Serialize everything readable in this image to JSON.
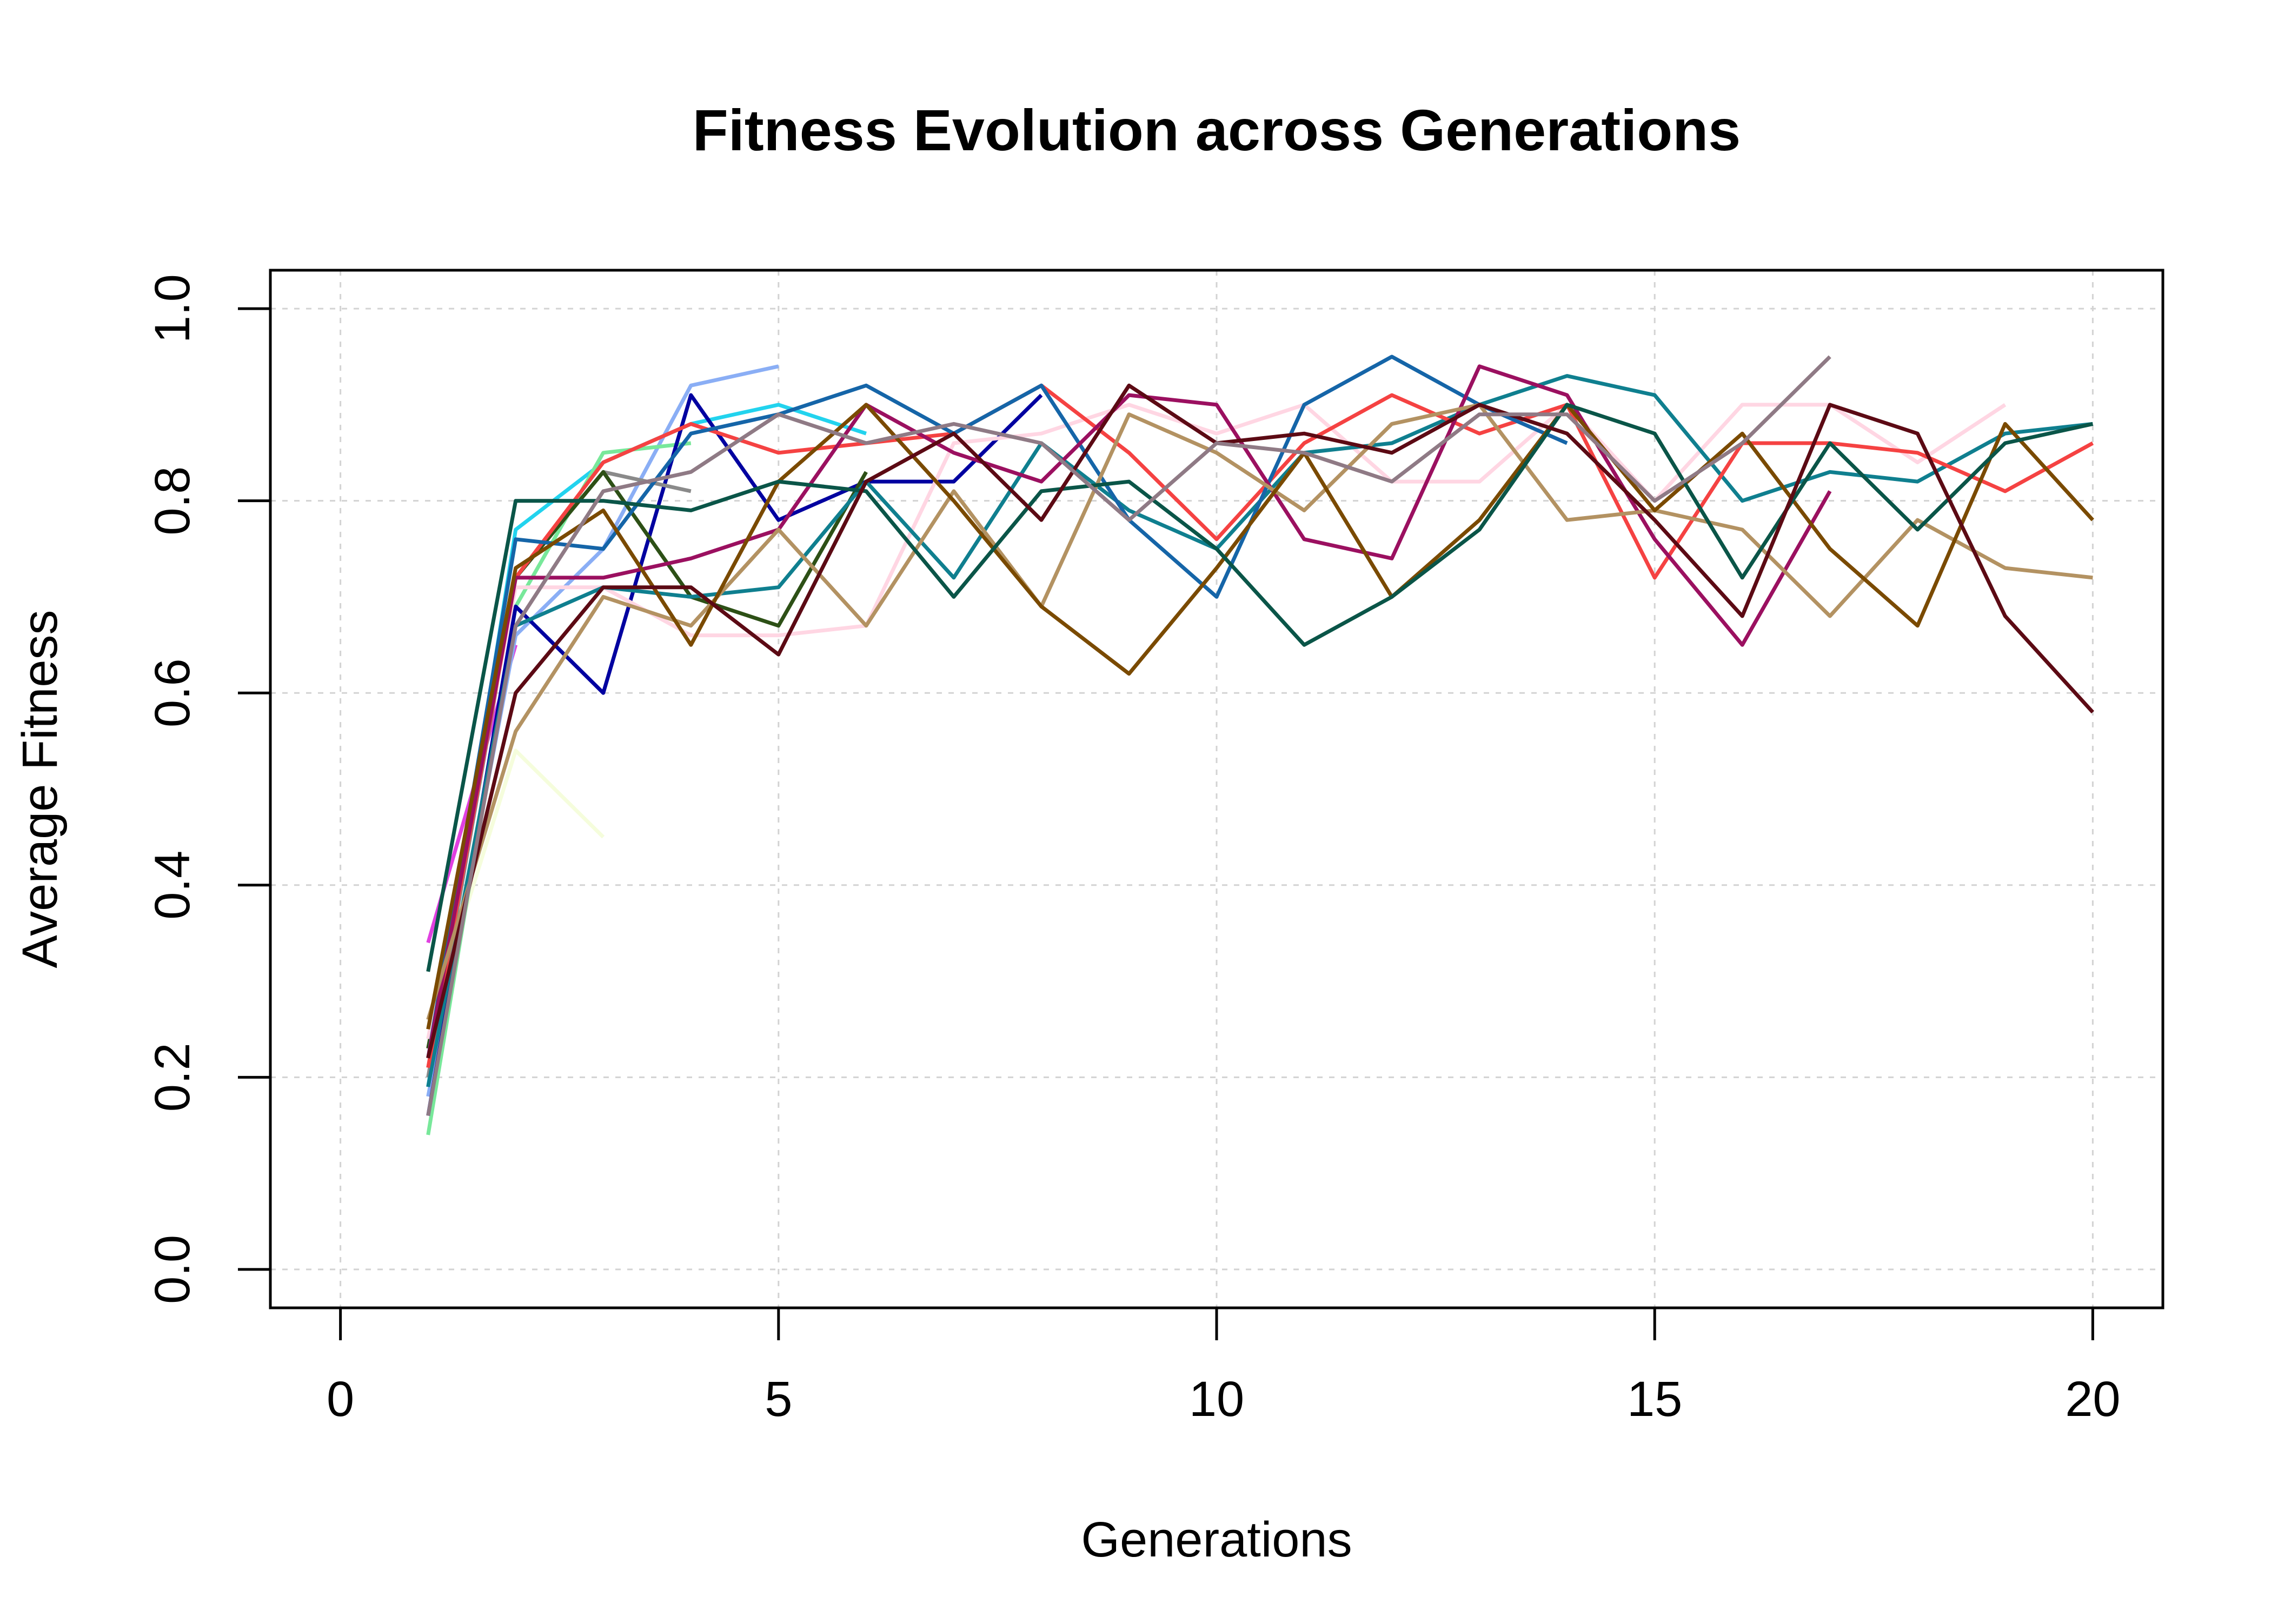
{
  "chart_data": {
    "type": "line",
    "title": "Fitness Evolution across Generations",
    "xlabel": "Generations",
    "ylabel": "Average Fitness",
    "xlim": [
      -0.8,
      20.8
    ],
    "ylim": [
      -0.04,
      1.04
    ],
    "x_ticks": [
      0,
      5,
      10,
      15,
      20
    ],
    "y_ticks": [
      0.0,
      0.2,
      0.4,
      0.6,
      0.8,
      1.0
    ],
    "x_tick_labels": [
      "0",
      "5",
      "10",
      "15",
      "20"
    ],
    "y_tick_labels": [
      "0.0",
      "0.2",
      "0.4",
      "0.6",
      "0.8",
      "1.0"
    ],
    "grid": true,
    "legend": "none",
    "series": [
      {
        "color": "#f5fddc",
        "x": [
          1,
          2,
          3
        ],
        "y": [
          0.25,
          0.54,
          0.45
        ]
      },
      {
        "color": "#e040e0",
        "x": [
          1,
          2
        ],
        "y": [
          0.34,
          0.65
        ]
      },
      {
        "color": "#22d3ee",
        "x": [
          1,
          2,
          3,
          4,
          5,
          6
        ],
        "y": [
          0.19,
          0.77,
          0.84,
          0.88,
          0.9,
          0.87
        ]
      },
      {
        "color": "#8aaef5",
        "x": [
          1,
          2,
          3,
          4,
          5
        ],
        "y": [
          0.18,
          0.66,
          0.75,
          0.92,
          0.94
        ]
      },
      {
        "color": "#78e89a",
        "x": [
          1,
          2,
          3,
          4
        ],
        "y": [
          0.14,
          0.69,
          0.85,
          0.86
        ]
      },
      {
        "color": "#0000a0",
        "x": [
          1,
          2,
          3,
          4,
          5,
          6,
          7,
          8
        ],
        "y": [
          0.16,
          0.69,
          0.6,
          0.91,
          0.78,
          0.82,
          0.82,
          0.91
        ]
      },
      {
        "color": "#8a8a8a",
        "x": [
          1,
          2,
          3,
          4
        ],
        "y": [
          0.2,
          0.72,
          0.83,
          0.81
        ]
      },
      {
        "color": "#2d5016",
        "x": [
          1,
          2,
          3,
          4,
          5,
          6
        ],
        "y": [
          0.23,
          0.72,
          0.83,
          0.7,
          0.67,
          0.83
        ]
      },
      {
        "color": "#ffd6e3",
        "x": [
          1,
          2,
          3,
          4,
          5,
          6,
          7,
          8,
          9,
          10,
          11,
          12,
          13,
          14,
          15,
          16,
          17,
          18,
          19
        ],
        "y": [
          0.24,
          0.71,
          0.71,
          0.66,
          0.66,
          0.67,
          0.86,
          0.87,
          0.9,
          0.87,
          0.9,
          0.82,
          0.82,
          0.9,
          0.8,
          0.9,
          0.9,
          0.84,
          0.9
        ]
      },
      {
        "color": "#0f7f8f",
        "x": [
          1,
          2,
          3,
          4,
          5,
          6,
          7,
          8,
          9,
          10,
          11,
          12,
          13,
          14,
          15,
          16,
          17,
          18,
          19,
          20
        ],
        "y": [
          0.19,
          0.67,
          0.71,
          0.7,
          0.71,
          0.82,
          0.72,
          0.86,
          0.79,
          0.75,
          0.85,
          0.86,
          0.9,
          0.93,
          0.91,
          0.8,
          0.83,
          0.82,
          0.87,
          0.88
        ]
      },
      {
        "color": "#f54242",
        "x": [
          1,
          2,
          3,
          4,
          5,
          6,
          7,
          8,
          9,
          10,
          11,
          12,
          13,
          14,
          15,
          16,
          17,
          18,
          19,
          20
        ],
        "y": [
          0.21,
          0.72,
          0.84,
          0.88,
          0.85,
          0.86,
          0.87,
          0.92,
          0.85,
          0.76,
          0.86,
          0.91,
          0.87,
          0.9,
          0.72,
          0.86,
          0.86,
          0.85,
          0.81,
          0.86
        ]
      },
      {
        "color": "#1565a8",
        "x": [
          1,
          2,
          3,
          4,
          5,
          6,
          7,
          8,
          9,
          10,
          11,
          12,
          13,
          14
        ],
        "y": [
          0.22,
          0.76,
          0.75,
          0.87,
          0.89,
          0.92,
          0.87,
          0.92,
          0.78,
          0.7,
          0.9,
          0.95,
          0.9,
          0.86
        ]
      },
      {
        "color": "#9b1060",
        "x": [
          1,
          2,
          3,
          4,
          5,
          6,
          7,
          8,
          9,
          10,
          11,
          12,
          13,
          14,
          15,
          16,
          17
        ],
        "y": [
          0.22,
          0.72,
          0.72,
          0.74,
          0.77,
          0.9,
          0.85,
          0.82,
          0.91,
          0.9,
          0.76,
          0.74,
          0.94,
          0.91,
          0.76,
          0.65,
          0.81
        ]
      },
      {
        "color": "#b39262",
        "x": [
          1,
          2,
          3,
          4,
          5,
          6,
          7,
          8,
          9,
          10,
          11,
          12,
          13,
          14,
          15,
          16,
          17,
          18,
          19,
          20
        ],
        "y": [
          0.26,
          0.56,
          0.7,
          0.67,
          0.77,
          0.67,
          0.81,
          0.69,
          0.89,
          0.85,
          0.79,
          0.88,
          0.9,
          0.78,
          0.79,
          0.77,
          0.68,
          0.78,
          0.73,
          0.72
        ]
      },
      {
        "color": "#7a4a00",
        "x": [
          1,
          2,
          3,
          4,
          5,
          6,
          7,
          8,
          9,
          10,
          11,
          12,
          13,
          14,
          15,
          16,
          17,
          18,
          19,
          20
        ],
        "y": [
          0.25,
          0.73,
          0.79,
          0.65,
          0.82,
          0.9,
          0.8,
          0.69,
          0.62,
          0.73,
          0.85,
          0.7,
          0.78,
          0.9,
          0.79,
          0.87,
          0.75,
          0.67,
          0.88,
          0.78
        ]
      },
      {
        "color": "#0a5548",
        "x": [
          1,
          2,
          3,
          4,
          5,
          6,
          7,
          8,
          9,
          10,
          11,
          12,
          13,
          14,
          15,
          16,
          17,
          18,
          19,
          20
        ],
        "y": [
          0.31,
          0.8,
          0.8,
          0.79,
          0.82,
          0.81,
          0.7,
          0.81,
          0.82,
          0.75,
          0.65,
          0.7,
          0.77,
          0.9,
          0.87,
          0.72,
          0.86,
          0.77,
          0.86,
          0.88
        ]
      },
      {
        "color": "#5c0a14",
        "x": [
          1,
          2,
          3,
          4,
          5,
          6,
          7,
          8,
          9,
          10,
          11,
          12,
          13,
          14,
          15,
          16,
          17,
          18,
          19,
          20
        ],
        "y": [
          0.22,
          0.6,
          0.71,
          0.71,
          0.64,
          0.82,
          0.87,
          0.78,
          0.92,
          0.86,
          0.87,
          0.85,
          0.9,
          0.87,
          0.78,
          0.68,
          0.9,
          0.87,
          0.68,
          0.58
        ]
      },
      {
        "color": "#8f7a85",
        "x": [
          1,
          2,
          3,
          4,
          5,
          6,
          7,
          8,
          9,
          10,
          11,
          12,
          13,
          14,
          15,
          16,
          17
        ],
        "y": [
          0.16,
          0.67,
          0.81,
          0.83,
          0.89,
          0.86,
          0.88,
          0.86,
          0.78,
          0.86,
          0.85,
          0.82,
          0.89,
          0.89,
          0.8,
          0.86,
          0.95
        ]
      }
    ]
  }
}
